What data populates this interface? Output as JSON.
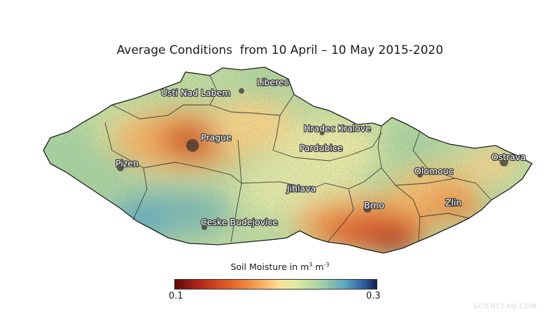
{
  "title": "Average Conditions  from 10 April – 10 May 2015-2020",
  "cities": [
    {
      "id": "liberec",
      "name": "Liberec"
    },
    {
      "id": "usti",
      "name": "Usti Nad Labem"
    },
    {
      "id": "hradec",
      "name": "Hradec Kralove"
    },
    {
      "id": "prague",
      "name": "Prague"
    },
    {
      "id": "pardubice",
      "name": "Pardubice"
    },
    {
      "id": "ostrava",
      "name": "Ostrava"
    },
    {
      "id": "pizen",
      "name": "Pizen"
    },
    {
      "id": "olomouc",
      "name": "Olomouc"
    },
    {
      "id": "jihlava",
      "name": "Jihlava"
    },
    {
      "id": "brno",
      "name": "Brno"
    },
    {
      "id": "zlin",
      "name": "Zlin"
    },
    {
      "id": "ceske",
      "name": "Ceske Budejovice"
    }
  ],
  "legend": {
    "label_text": "Soil Moisture in m",
    "unit_exp": "3",
    "unit_mid": " m",
    "unit_exp2": "-3",
    "min": "0.1",
    "max": "0.3",
    "colors": [
      "#5e0a0a",
      "#b3261a",
      "#e4642a",
      "#f4a958",
      "#fbe39a",
      "#dfeaa4",
      "#a7d3a4",
      "#5fa8c2",
      "#2b5a9b",
      "#15224f"
    ]
  },
  "watermark": "SCIENCEAQ.COM"
}
